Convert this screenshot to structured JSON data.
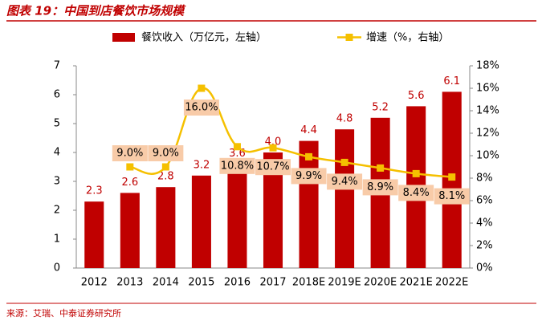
{
  "chart_data": {
    "type": "bar_line",
    "title": "图表 19：中国到店餐饮市场规模",
    "source": "来源：艾瑞、中泰证券研究所",
    "categories": [
      "2012",
      "2013",
      "2014",
      "2015",
      "2016",
      "2017",
      "2018E",
      "2019E",
      "2020E",
      "2021E",
      "2022E"
    ],
    "series": [
      {
        "name": "餐饮收入（万亿元，左轴）",
        "color": "#c00000",
        "type": "bar",
        "values": [
          2.3,
          2.6,
          2.8,
          3.2,
          3.6,
          4.0,
          4.4,
          4.8,
          5.2,
          5.6,
          6.1
        ],
        "value_labels": [
          "2.3",
          "2.6",
          "2.8",
          "3.2",
          "3.6",
          "4.0",
          "4.4",
          "4.8",
          "5.2",
          "5.6",
          "6.1"
        ]
      },
      {
        "name": "增速（%，右轴）",
        "color": "#f5c000",
        "type": "line",
        "axis": "y2",
        "values": [
          null,
          9.0,
          9.0,
          16.0,
          10.8,
          10.7,
          9.9,
          9.4,
          8.9,
          8.4,
          8.1
        ],
        "value_labels": [
          null,
          "9.0%",
          "9.0%",
          "16.0%",
          "10.8%",
          "10.7%",
          "9.9%",
          "9.4%",
          "8.9%",
          "8.4%",
          "8.1%"
        ]
      }
    ],
    "ylim": [
      0,
      7
    ],
    "yticks": [
      0,
      1,
      2,
      3,
      4,
      5,
      6,
      7
    ],
    "y2lim": [
      0,
      18
    ],
    "y2ticks": [
      {
        "value": 0,
        "label": "0%"
      },
      {
        "value": 2,
        "label": "2%"
      },
      {
        "value": 4,
        "label": "4%"
      },
      {
        "value": 6,
        "label": "6%"
      },
      {
        "value": 8,
        "label": "8%"
      },
      {
        "value": 10,
        "label": "10%"
      },
      {
        "value": 12,
        "label": "12%"
      },
      {
        "value": 14,
        "label": "14%"
      },
      {
        "value": 16,
        "label": "16%"
      },
      {
        "value": 18,
        "label": "18%"
      }
    ]
  }
}
